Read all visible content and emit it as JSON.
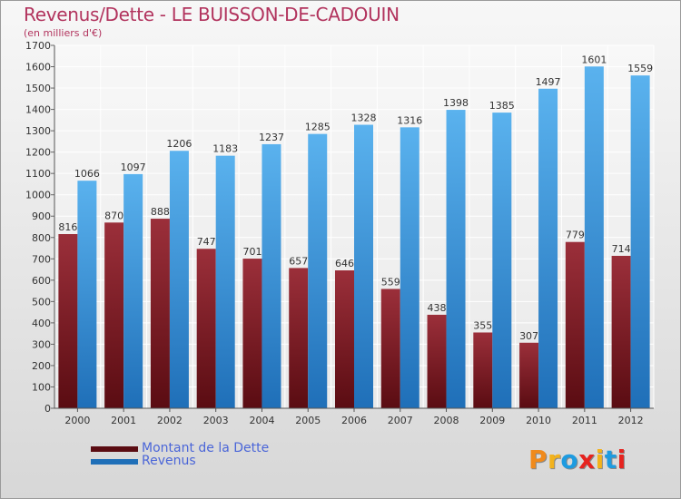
{
  "title": "Revenus/Dette - LE BUISSON-DE-CADOUIN",
  "subtitle": "(en milliers d'€)",
  "logo": {
    "text": "Proxiti",
    "colors": [
      "#f08a1c",
      "#f2b21c",
      "#1e9be0",
      "#e6231f",
      "#f2b21c",
      "#1e9be0",
      "#e6231f"
    ]
  },
  "colors": {
    "title": "#b2345e",
    "dette_top": "#9b2f3a",
    "dette_bottom": "#5a0c12",
    "revenus_top": "#5ab2ee",
    "revenus_bottom": "#1f6fb8",
    "legend_text": "#4b66d8"
  },
  "chart_data": {
    "type": "bar",
    "categories": [
      "2000",
      "2001",
      "2002",
      "2003",
      "2004",
      "2005",
      "2006",
      "2007",
      "2008",
      "2009",
      "2010",
      "2011",
      "2012"
    ],
    "series": [
      {
        "name": "Montant de la Dette",
        "values": [
          816,
          870,
          888,
          747,
          701,
          657,
          646,
          559,
          438,
          355,
          307,
          779,
          714
        ]
      },
      {
        "name": "Revenus",
        "values": [
          1066,
          1097,
          1206,
          1183,
          1237,
          1285,
          1328,
          1316,
          1398,
          1385,
          1497,
          1601,
          1559
        ]
      }
    ],
    "ylim": [
      0,
      1700
    ],
    "yticks": [
      0,
      100,
      200,
      300,
      400,
      500,
      600,
      700,
      800,
      900,
      1000,
      1100,
      1200,
      1300,
      1400,
      1500,
      1600,
      1700
    ],
    "grid": true,
    "legend_position": "bottom-left"
  }
}
